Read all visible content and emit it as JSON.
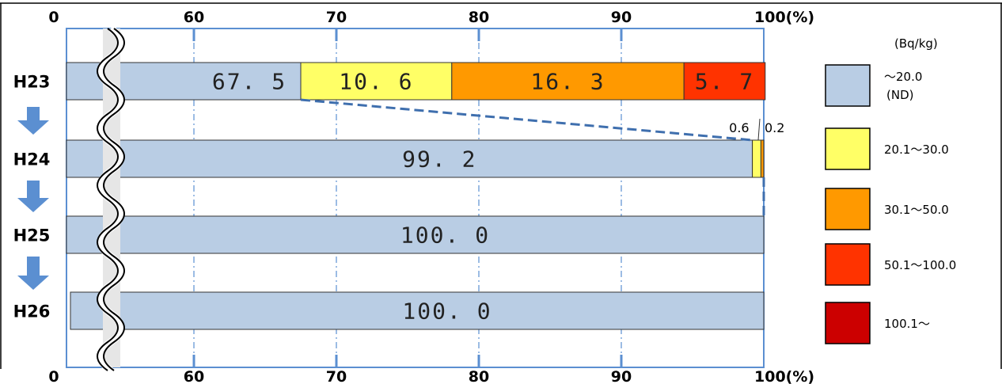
{
  "chart_data": {
    "type": "bar",
    "orientation": "horizontal",
    "stacked": true,
    "axis_broken": true,
    "xlim": [
      50,
      100
    ],
    "x_ticks": [
      "0",
      "60",
      "70",
      "80",
      "90",
      "100(%)"
    ],
    "categories": [
      "H23",
      "H24",
      "H25",
      "H26"
    ],
    "unit_label": "(Bq/kg)",
    "series": [
      {
        "name": "〜20.0",
        "name_sub": "(ND)",
        "color": "#b9cde4",
        "values": [
          67.5,
          99.2,
          100.0,
          100.0
        ],
        "labels": [
          "67. 5",
          "99. 2",
          "100. 0",
          "100. 0"
        ]
      },
      {
        "name": "20.1〜30.0",
        "color": "#ffff66",
        "values": [
          10.6,
          0.6,
          0,
          0
        ],
        "labels": [
          "10. 6",
          "0.6",
          "",
          ""
        ]
      },
      {
        "name": "30.1〜50.0",
        "color": "#ff9900",
        "values": [
          16.3,
          0.2,
          0,
          0
        ],
        "labels": [
          "16. 3",
          "0.2",
          "",
          ""
        ]
      },
      {
        "name": "50.1〜100.0",
        "color": "#ff3300",
        "values": [
          5.7,
          0,
          0,
          0
        ],
        "labels": [
          "5. 7",
          "",
          "",
          ""
        ]
      },
      {
        "name": "100.1〜",
        "color": "#cc0000",
        "values": [
          0,
          0,
          0,
          0
        ],
        "labels": [
          "",
          "",
          "",
          ""
        ]
      }
    ],
    "grid": true,
    "legend": "right"
  }
}
